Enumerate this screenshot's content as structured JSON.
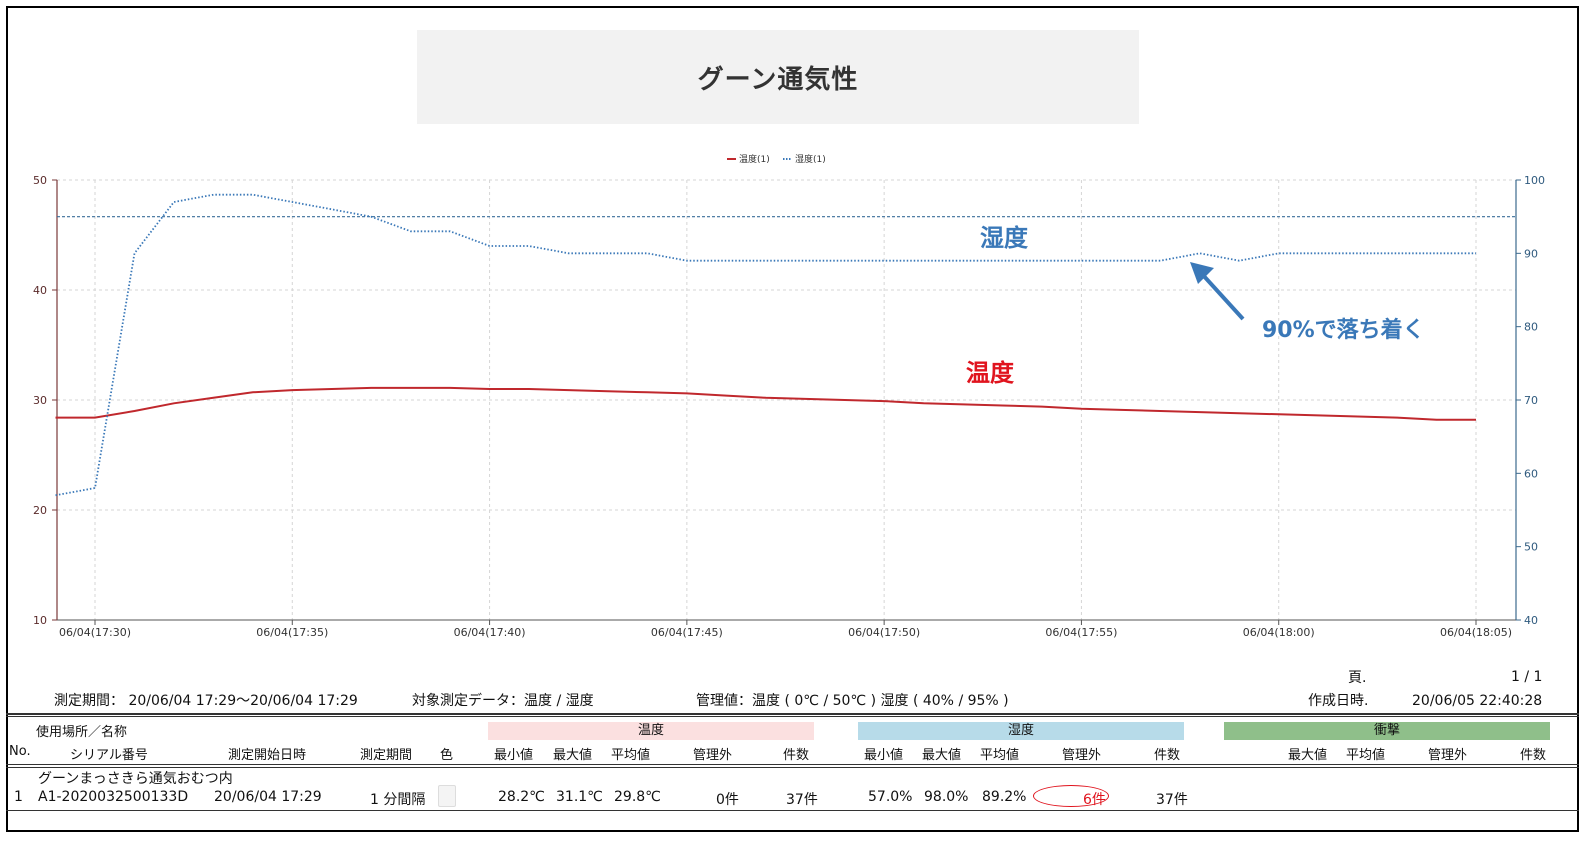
{
  "title": "グーン通気性",
  "chart_data": {
    "type": "line",
    "legend": {
      "placement": "top-center",
      "entries": [
        "温度(1)",
        "湿度(1)"
      ]
    },
    "x_ticks": [
      "06/04(17:30)",
      "06/04(17:35)",
      "06/04(17:40)",
      "06/04(17:45)",
      "06/04(17:50)",
      "06/04(17:55)",
      "06/04(18:00)",
      "06/04(18:05)"
    ],
    "y_left": {
      "range": [
        10,
        50
      ],
      "ticks": [
        "10",
        "20",
        "30",
        "40",
        "50"
      ]
    },
    "y_right": {
      "range": [
        40,
        100
      ],
      "ticks": [
        "40",
        "50",
        "60",
        "70",
        "80",
        "90",
        "100"
      ]
    },
    "grid": true,
    "x_minutes_range": [
      -1,
      36
    ],
    "reference_line": {
      "axis": "right",
      "value": 95
    },
    "series": [
      {
        "name": "温度(1)",
        "axis": "left",
        "color": "#c0282d",
        "style": "solid",
        "x": [
          -1,
          0,
          1,
          2,
          3,
          4,
          5,
          6,
          7,
          8,
          9,
          10,
          11,
          12,
          13,
          14,
          15,
          16,
          17,
          18,
          19,
          20,
          21,
          22,
          23,
          24,
          25,
          26,
          27,
          28,
          29,
          30,
          31,
          32,
          33,
          34,
          35
        ],
        "values": [
          28.4,
          28.4,
          29.0,
          29.7,
          30.2,
          30.7,
          30.9,
          31.0,
          31.1,
          31.1,
          31.1,
          31.0,
          31.0,
          30.9,
          30.8,
          30.7,
          30.6,
          30.4,
          30.2,
          30.1,
          30.0,
          29.9,
          29.7,
          29.6,
          29.5,
          29.4,
          29.2,
          29.1,
          29.0,
          28.9,
          28.8,
          28.7,
          28.6,
          28.5,
          28.4,
          28.2,
          28.2
        ]
      },
      {
        "name": "湿度(1)",
        "axis": "right",
        "color": "#3a78b8",
        "style": "dotted",
        "x": [
          -1,
          0,
          1,
          2,
          3,
          4,
          5,
          6,
          7,
          8,
          9,
          10,
          11,
          12,
          13,
          14,
          15,
          16,
          17,
          18,
          19,
          20,
          21,
          22,
          23,
          24,
          25,
          26,
          27,
          28,
          29,
          30,
          31,
          32,
          33,
          34,
          35
        ],
        "values": [
          57,
          58,
          90,
          97,
          98,
          98,
          97,
          96,
          95,
          93,
          93,
          91,
          91,
          90,
          90,
          90,
          89,
          89,
          89,
          89,
          89,
          89,
          89,
          89,
          89,
          89,
          89,
          89,
          89,
          90,
          89,
          90,
          90,
          90,
          90,
          90,
          90
        ]
      }
    ],
    "annotations": [
      {
        "text": "湿度",
        "color": "#3a78b8"
      },
      {
        "text": "温度",
        "color": "#e0141e"
      },
      {
        "text": "90%で落ち着く",
        "color": "#3a78b8"
      }
    ]
  },
  "info": {
    "period": "測定期間： 20/06/04 17:29～20/06/04 17:29",
    "target": "対象測定データ：温度 / 湿度",
    "control": "管理値：温度 ( 0℃ / 50℃ ) 湿度 ( 40% / 95% )",
    "page_label": "頁.",
    "page_value": "1 / 1",
    "created_label": "作成日時.",
    "created_value": "20/06/05 22:40:28"
  },
  "table": {
    "hdr_location": "使用場所／名称",
    "hdr_no": "No.",
    "hdr_serial": "シリアル番号",
    "hdr_start": "測定開始日時",
    "hdr_period": "測定期間",
    "hdr_color": "色",
    "band_temp": "温度",
    "band_hum": "湿度",
    "band_shock": "衝撃",
    "temp_cols": [
      "最小値",
      "最大値",
      "平均値",
      "管理外",
      "件数"
    ],
    "hum_cols": [
      "最小値",
      "最大値",
      "平均値",
      "管理外",
      "件数"
    ],
    "shock_cols": [
      "最大値",
      "平均値",
      "管理外",
      "件数"
    ],
    "row": {
      "location": "グーンまっさきら通気おむつ内",
      "no": "1",
      "serial": "A1-2020032500133D",
      "start": "20/06/04 17:29",
      "period": "1 分間隔",
      "temp_min": "28.2℃",
      "temp_max": "31.1℃",
      "temp_avg": "29.8℃",
      "temp_out": "0件",
      "temp_count": "37件",
      "hum_min": "57.0%",
      "hum_max": "98.0%",
      "hum_avg": "89.2%",
      "hum_out": "6件",
      "hum_count": "37件"
    }
  },
  "colors": {
    "band_temp": "#fbe0e0",
    "band_hum": "#b7dbe9",
    "band_shock": "#8fbf8a",
    "highlight": "#e0141e"
  }
}
